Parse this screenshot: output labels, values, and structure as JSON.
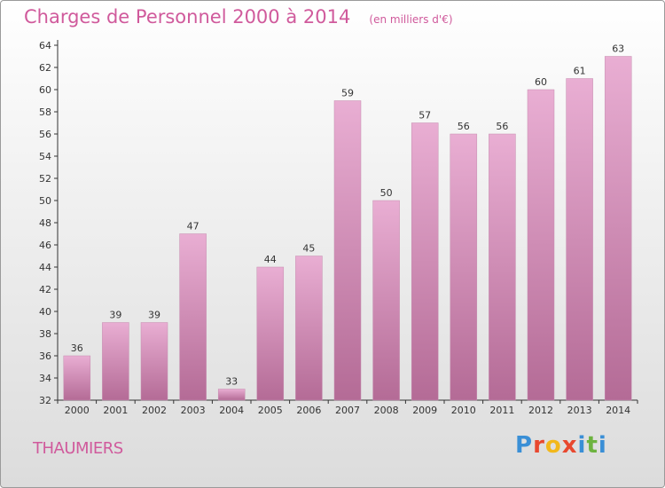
{
  "header": {
    "title": "Charges de Personnel 2000 à 2014",
    "subtitle": "(en milliers d'€)"
  },
  "footer": {
    "town": "THAUMIERS",
    "logo": [
      "P",
      "r",
      "o",
      "x",
      "i",
      "t",
      "i"
    ]
  },
  "colors": {
    "bar_light": "#e9aed3",
    "bar_dark": "#b46b96",
    "text_accent": "#d05a9c",
    "logo": [
      "#3a8fd6",
      "#e8482f",
      "#f2b81b",
      "#e8482f",
      "#3a8fd6",
      "#6db33f",
      "#3a8fd6"
    ]
  },
  "chart_data": {
    "type": "bar",
    "categories": [
      "2000",
      "2001",
      "2002",
      "2003",
      "2004",
      "2005",
      "2006",
      "2007",
      "2008",
      "2009",
      "2010",
      "2011",
      "2012",
      "2013",
      "2014"
    ],
    "values": [
      36,
      39,
      39,
      47,
      33,
      44,
      45,
      59,
      50,
      57,
      56,
      56,
      60,
      61,
      63
    ],
    "title": "Charges de Personnel 2000 à 2014",
    "ylim": [
      32,
      64
    ],
    "yticks": [
      32,
      34,
      36,
      38,
      40,
      42,
      44,
      46,
      48,
      50,
      52,
      54,
      56,
      58,
      60,
      62,
      64
    ],
    "grid": false,
    "legend": "none"
  }
}
